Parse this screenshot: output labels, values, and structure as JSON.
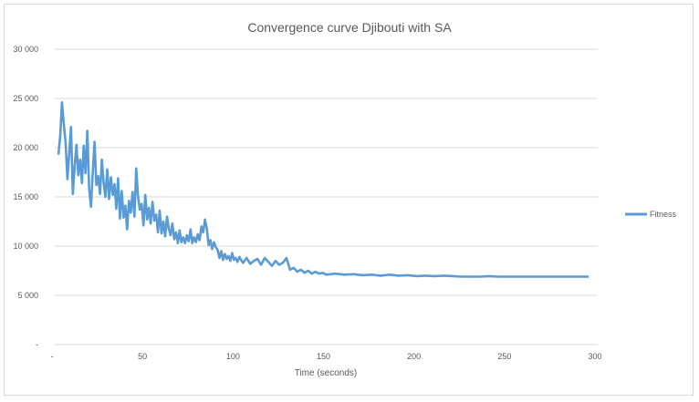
{
  "chart_data": {
    "type": "line",
    "title": "Convergence curve Djibouti with SA",
    "xlabel": "Time (seconds)",
    "ylabel": "",
    "xlim": [
      0,
      300
    ],
    "ylim": [
      0,
      30000
    ],
    "x_ticks": [
      "-",
      "50",
      "100",
      "150",
      "200",
      "250",
      "300"
    ],
    "x_tick_values": [
      0,
      50,
      100,
      150,
      200,
      250,
      300
    ],
    "y_ticks": [
      "-",
      "5 000",
      "10 000",
      "15 000",
      "20 000",
      "25 000",
      "30 000"
    ],
    "y_tick_values": [
      0,
      5000,
      10000,
      15000,
      20000,
      25000,
      30000
    ],
    "grid": "horizontal",
    "legend_position": "right",
    "series": [
      {
        "name": "Fitness",
        "color": "#5b9bd5",
        "points": [
          [
            2,
            19300
          ],
          [
            3,
            21200
          ],
          [
            4,
            24600
          ],
          [
            5,
            22400
          ],
          [
            6,
            20500
          ],
          [
            7,
            16800
          ],
          [
            8,
            19500
          ],
          [
            9,
            22100
          ],
          [
            10,
            15300
          ],
          [
            11,
            18100
          ],
          [
            12,
            20300
          ],
          [
            13,
            17200
          ],
          [
            14,
            18800
          ],
          [
            15,
            16400
          ],
          [
            16,
            20200
          ],
          [
            17,
            17400
          ],
          [
            18,
            21700
          ],
          [
            19,
            15800
          ],
          [
            20,
            14000
          ],
          [
            21,
            17600
          ],
          [
            22,
            20600
          ],
          [
            23,
            16200
          ],
          [
            24,
            17100
          ],
          [
            25,
            15300
          ],
          [
            26,
            18800
          ],
          [
            27,
            16500
          ],
          [
            28,
            15000
          ],
          [
            29,
            17800
          ],
          [
            30,
            14800
          ],
          [
            31,
            17000
          ],
          [
            32,
            15200
          ],
          [
            33,
            16300
          ],
          [
            34,
            13800
          ],
          [
            35,
            16900
          ],
          [
            36,
            12800
          ],
          [
            37,
            15600
          ],
          [
            38,
            12900
          ],
          [
            39,
            14100
          ],
          [
            40,
            11700
          ],
          [
            41,
            14600
          ],
          [
            42,
            13400
          ],
          [
            43,
            15500
          ],
          [
            44,
            13000
          ],
          [
            45,
            17900
          ],
          [
            46,
            15100
          ],
          [
            47,
            13700
          ],
          [
            48,
            14300
          ],
          [
            49,
            12100
          ],
          [
            50,
            15200
          ],
          [
            51,
            12700
          ],
          [
            52,
            13900
          ],
          [
            53,
            12300
          ],
          [
            54,
            14500
          ],
          [
            55,
            12600
          ],
          [
            56,
            13200
          ],
          [
            57,
            11400
          ],
          [
            58,
            13600
          ],
          [
            59,
            11300
          ],
          [
            60,
            12500
          ],
          [
            61,
            11000
          ],
          [
            62,
            13000
          ],
          [
            63,
            11800
          ],
          [
            64,
            11100
          ],
          [
            65,
            12300
          ],
          [
            66,
            10700
          ],
          [
            67,
            11400
          ],
          [
            68,
            10300
          ],
          [
            69,
            11600
          ],
          [
            70,
            10400
          ],
          [
            71,
            10900
          ],
          [
            72,
            10300
          ],
          [
            73,
            11100
          ],
          [
            74,
            10500
          ],
          [
            75,
            11700
          ],
          [
            76,
            10300
          ],
          [
            77,
            10900
          ],
          [
            78,
            10400
          ],
          [
            79,
            11200
          ],
          [
            80,
            10600
          ],
          [
            81,
            12000
          ],
          [
            82,
            11400
          ],
          [
            83,
            12700
          ],
          [
            84,
            11800
          ],
          [
            85,
            10100
          ],
          [
            86,
            10600
          ],
          [
            87,
            9700
          ],
          [
            88,
            10400
          ],
          [
            89,
            9900
          ],
          [
            90,
            9600
          ],
          [
            91,
            8800
          ],
          [
            92,
            9500
          ],
          [
            93,
            8600
          ],
          [
            94,
            9200
          ],
          [
            95,
            8700
          ],
          [
            96,
            9000
          ],
          [
            97,
            8500
          ],
          [
            98,
            9300
          ],
          [
            99,
            8600
          ],
          [
            100,
            8800
          ],
          [
            101,
            8400
          ],
          [
            102,
            8900
          ],
          [
            104,
            8300
          ],
          [
            106,
            8800
          ],
          [
            108,
            8200
          ],
          [
            110,
            8500
          ],
          [
            112,
            8700
          ],
          [
            114,
            8100
          ],
          [
            116,
            8800
          ],
          [
            118,
            8400
          ],
          [
            120,
            8000
          ],
          [
            122,
            8500
          ],
          [
            124,
            8100
          ],
          [
            126,
            8300
          ],
          [
            128,
            8800
          ],
          [
            129,
            8200
          ],
          [
            130,
            7600
          ],
          [
            132,
            7800
          ],
          [
            134,
            7400
          ],
          [
            136,
            7600
          ],
          [
            138,
            7300
          ],
          [
            140,
            7500
          ],
          [
            142,
            7200
          ],
          [
            144,
            7400
          ],
          [
            146,
            7200
          ],
          [
            148,
            7300
          ],
          [
            150,
            7100
          ],
          [
            155,
            7200
          ],
          [
            160,
            7100
          ],
          [
            165,
            7150
          ],
          [
            170,
            7050
          ],
          [
            175,
            7100
          ],
          [
            180,
            7000
          ],
          [
            185,
            7100
          ],
          [
            190,
            7000
          ],
          [
            195,
            7050
          ],
          [
            200,
            6950
          ],
          [
            205,
            7000
          ],
          [
            210,
            6950
          ],
          [
            215,
            7000
          ],
          [
            220,
            6950
          ],
          [
            225,
            6900
          ],
          [
            230,
            6900
          ],
          [
            235,
            6900
          ],
          [
            240,
            6950
          ],
          [
            245,
            6900
          ],
          [
            250,
            6900
          ],
          [
            260,
            6900
          ],
          [
            270,
            6900
          ],
          [
            280,
            6900
          ],
          [
            290,
            6900
          ],
          [
            295,
            6900
          ]
        ]
      }
    ]
  }
}
